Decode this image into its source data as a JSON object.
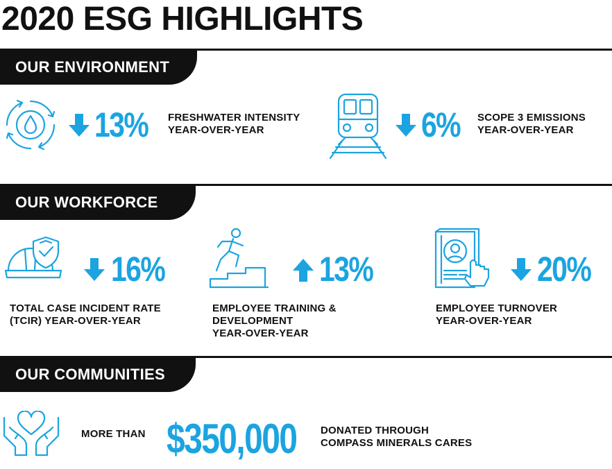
{
  "title": "2020 ESG HIGHLIGHTS",
  "colors": {
    "accent": "#1ba4e0",
    "dark": "#111111"
  },
  "sections": {
    "environment": {
      "heading": "OUR ENVIRONMENT",
      "stats": [
        {
          "icon": "water-drop-cycle-icon",
          "direction": "down",
          "value": "13%",
          "label": [
            "FRESHWATER INTENSITY",
            "YEAR-OVER-YEAR"
          ]
        },
        {
          "icon": "train-icon",
          "direction": "down",
          "value": "6%",
          "label": [
            "SCOPE 3 EMISSIONS",
            "YEAR-OVER-YEAR"
          ]
        }
      ]
    },
    "workforce": {
      "heading": "OUR WORKFORCE",
      "stats": [
        {
          "icon": "hard-hat-shield-icon",
          "direction": "down",
          "value": "16%",
          "label": [
            "TOTAL CASE INCIDENT RATE",
            "(TCIR) YEAR-OVER-YEAR"
          ]
        },
        {
          "icon": "person-climbing-stairs-icon",
          "direction": "up",
          "value": "13%",
          "label": [
            "EMPLOYEE TRAINING &",
            "DEVELOPMENT",
            "YEAR-OVER-YEAR"
          ]
        },
        {
          "icon": "resume-selection-icon",
          "direction": "down",
          "value": "20%",
          "label": [
            "EMPLOYEE TURNOVER",
            "YEAR-OVER-YEAR"
          ]
        }
      ]
    },
    "communities": {
      "heading": "OUR COMMUNITIES",
      "prefix": "MORE THAN",
      "value": "$350,000",
      "icon": "hands-heart-icon",
      "label": [
        "DONATED THROUGH",
        "COMPASS MINERALS CARES"
      ]
    }
  }
}
